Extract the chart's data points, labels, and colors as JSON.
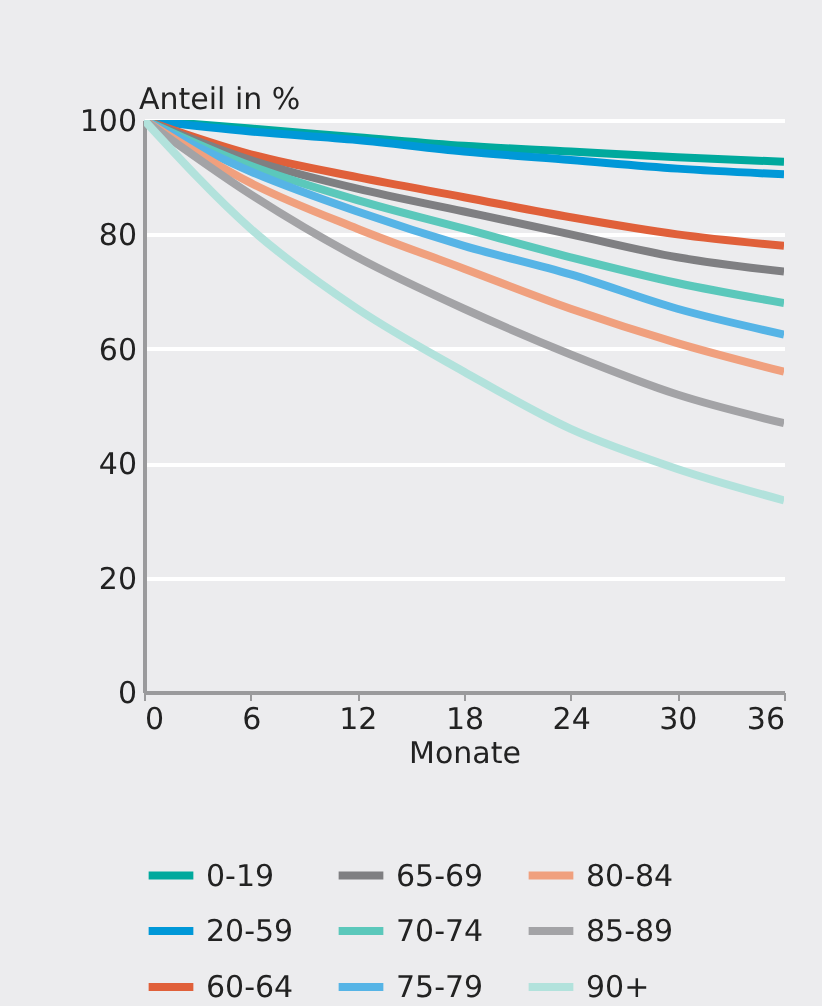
{
  "chart_data": {
    "type": "line",
    "xlabel": "Monate",
    "ylabel": "Anteil in %",
    "x": [
      0,
      6,
      12,
      18,
      24,
      30,
      36
    ],
    "xlim": [
      0,
      36
    ],
    "xticks": [
      0,
      6,
      12,
      18,
      24,
      30,
      36
    ],
    "ylim": [
      0,
      100
    ],
    "yticks": [
      0,
      20,
      40,
      60,
      80,
      100
    ],
    "grid": "y",
    "legend": "bottom",
    "line_style": "solid",
    "series": [
      {
        "name": "0-19",
        "color": "#00a99d",
        "values": [
          100,
          98.5,
          97,
          95.5,
          94.5,
          93.5,
          92.7
        ]
      },
      {
        "name": "20-59",
        "color": "#0098d8",
        "values": [
          100,
          98,
          96.5,
          94.5,
          93,
          91.5,
          90.5
        ]
      },
      {
        "name": "60-64",
        "color": "#e0603a",
        "values": [
          100,
          94,
          90,
          86.5,
          83,
          80,
          78
        ]
      },
      {
        "name": "65-69",
        "color": "#7f7f82",
        "values": [
          100,
          93,
          88,
          84,
          80,
          76,
          73.5
        ]
      },
      {
        "name": "70-74",
        "color": "#5bc8bb",
        "values": [
          100,
          92,
          86,
          81,
          76,
          71.5,
          68
        ]
      },
      {
        "name": "75-79",
        "color": "#56b4e6",
        "values": [
          100,
          91,
          84,
          78,
          73,
          67,
          62.5
        ]
      },
      {
        "name": "80-84",
        "color": "#f0a07e",
        "values": [
          100,
          89,
          81,
          74,
          67,
          61,
          56
        ]
      },
      {
        "name": "85-89",
        "color": "#a3a3a6",
        "values": [
          100,
          87,
          76,
          67,
          59,
          52,
          47
        ]
      },
      {
        "name": "90+",
        "color": "#b2e2dc",
        "values": [
          100,
          81,
          67,
          56,
          46,
          39,
          33.5
        ]
      }
    ]
  }
}
